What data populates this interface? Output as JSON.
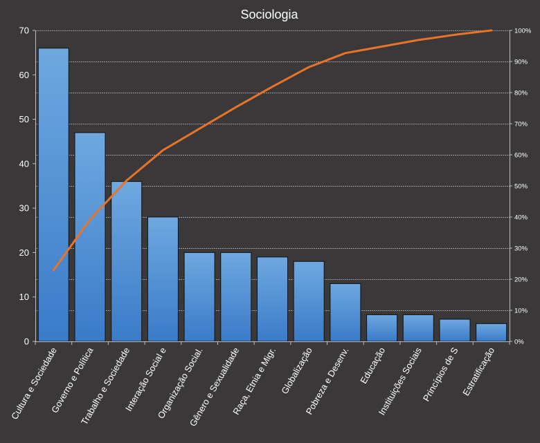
{
  "chart_data": {
    "type": "bar",
    "title": "Sociologia",
    "categories": [
      "Cultura e Sociedade",
      "Governo e Política",
      "Trabalho e Sociedade",
      "Interação Social e",
      "Organização Social.",
      "Gênero e Sexualidade",
      "Raça, Etnia e Migr.",
      "Globalização",
      "Pobreza e Desenv.",
      "Educação",
      "Instituições Sociais",
      "Princípios de S",
      "Estratificação"
    ],
    "values": [
      66,
      47,
      36,
      28,
      20,
      20,
      19,
      18,
      13,
      6,
      6,
      5,
      4
    ],
    "cumulative_percent": [
      22.9,
      39.2,
      51.7,
      61.5,
      68.4,
      75.3,
      81.9,
      88.2,
      92.7,
      94.8,
      96.9,
      98.6,
      100
    ],
    "ylim": [
      0,
      70
    ],
    "yticks": [
      "0",
      "10",
      "20",
      "30",
      "40",
      "50",
      "60",
      "70"
    ],
    "y2lim": [
      0,
      100
    ],
    "y2ticks": [
      "0%",
      "10%",
      "20%",
      "30%",
      "40%",
      "50%",
      "60%",
      "70%",
      "80%",
      "90%",
      "100%"
    ],
    "grid": true,
    "colors": {
      "background": "#3a3838",
      "bar_top": "#6fa8e0",
      "bar_bottom": "#3a7bc8",
      "bar_edge": "#111111",
      "line": "#e8742a",
      "grid": "#bfbfbf",
      "text": "#ffffff"
    }
  }
}
